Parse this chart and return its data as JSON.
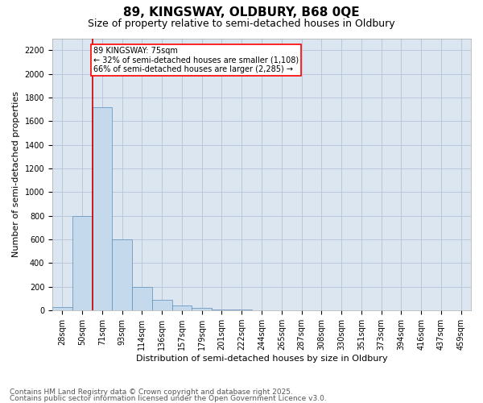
{
  "title1": "89, KINGSWAY, OLDBURY, B68 0QE",
  "title2": "Size of property relative to semi-detached houses in Oldbury",
  "xlabel": "Distribution of semi-detached houses by size in Oldbury",
  "ylabel": "Number of semi-detached properties",
  "bin_labels": [
    "28sqm",
    "50sqm",
    "71sqm",
    "93sqm",
    "114sqm",
    "136sqm",
    "157sqm",
    "179sqm",
    "201sqm",
    "222sqm",
    "244sqm",
    "265sqm",
    "287sqm",
    "308sqm",
    "330sqm",
    "351sqm",
    "373sqm",
    "394sqm",
    "416sqm",
    "437sqm",
    "459sqm"
  ],
  "bar_values": [
    30,
    800,
    1720,
    600,
    200,
    90,
    45,
    20,
    10,
    5,
    0,
    0,
    0,
    0,
    0,
    0,
    0,
    0,
    0,
    0,
    0
  ],
  "bar_color": "#c5d9ed",
  "bar_edge_color": "#5b8db8",
  "grid_color": "#b8c8dc",
  "background_color": "#dce6f1",
  "vline_color": "#cc0000",
  "vline_x": 1.5,
  "annotation_text": "89 KINGSWAY: 75sqm\n← 32% of semi-detached houses are smaller (1,108)\n66% of semi-detached houses are larger (2,285) →",
  "ylim": [
    0,
    2300
  ],
  "yticks": [
    0,
    200,
    400,
    600,
    800,
    1000,
    1200,
    1400,
    1600,
    1800,
    2000,
    2200
  ],
  "footer1": "Contains HM Land Registry data © Crown copyright and database right 2025.",
  "footer2": "Contains public sector information licensed under the Open Government Licence v3.0.",
  "title1_fontsize": 11,
  "title2_fontsize": 9,
  "axis_label_fontsize": 8,
  "tick_fontsize": 7,
  "annotation_fontsize": 7,
  "footer_fontsize": 6.5
}
